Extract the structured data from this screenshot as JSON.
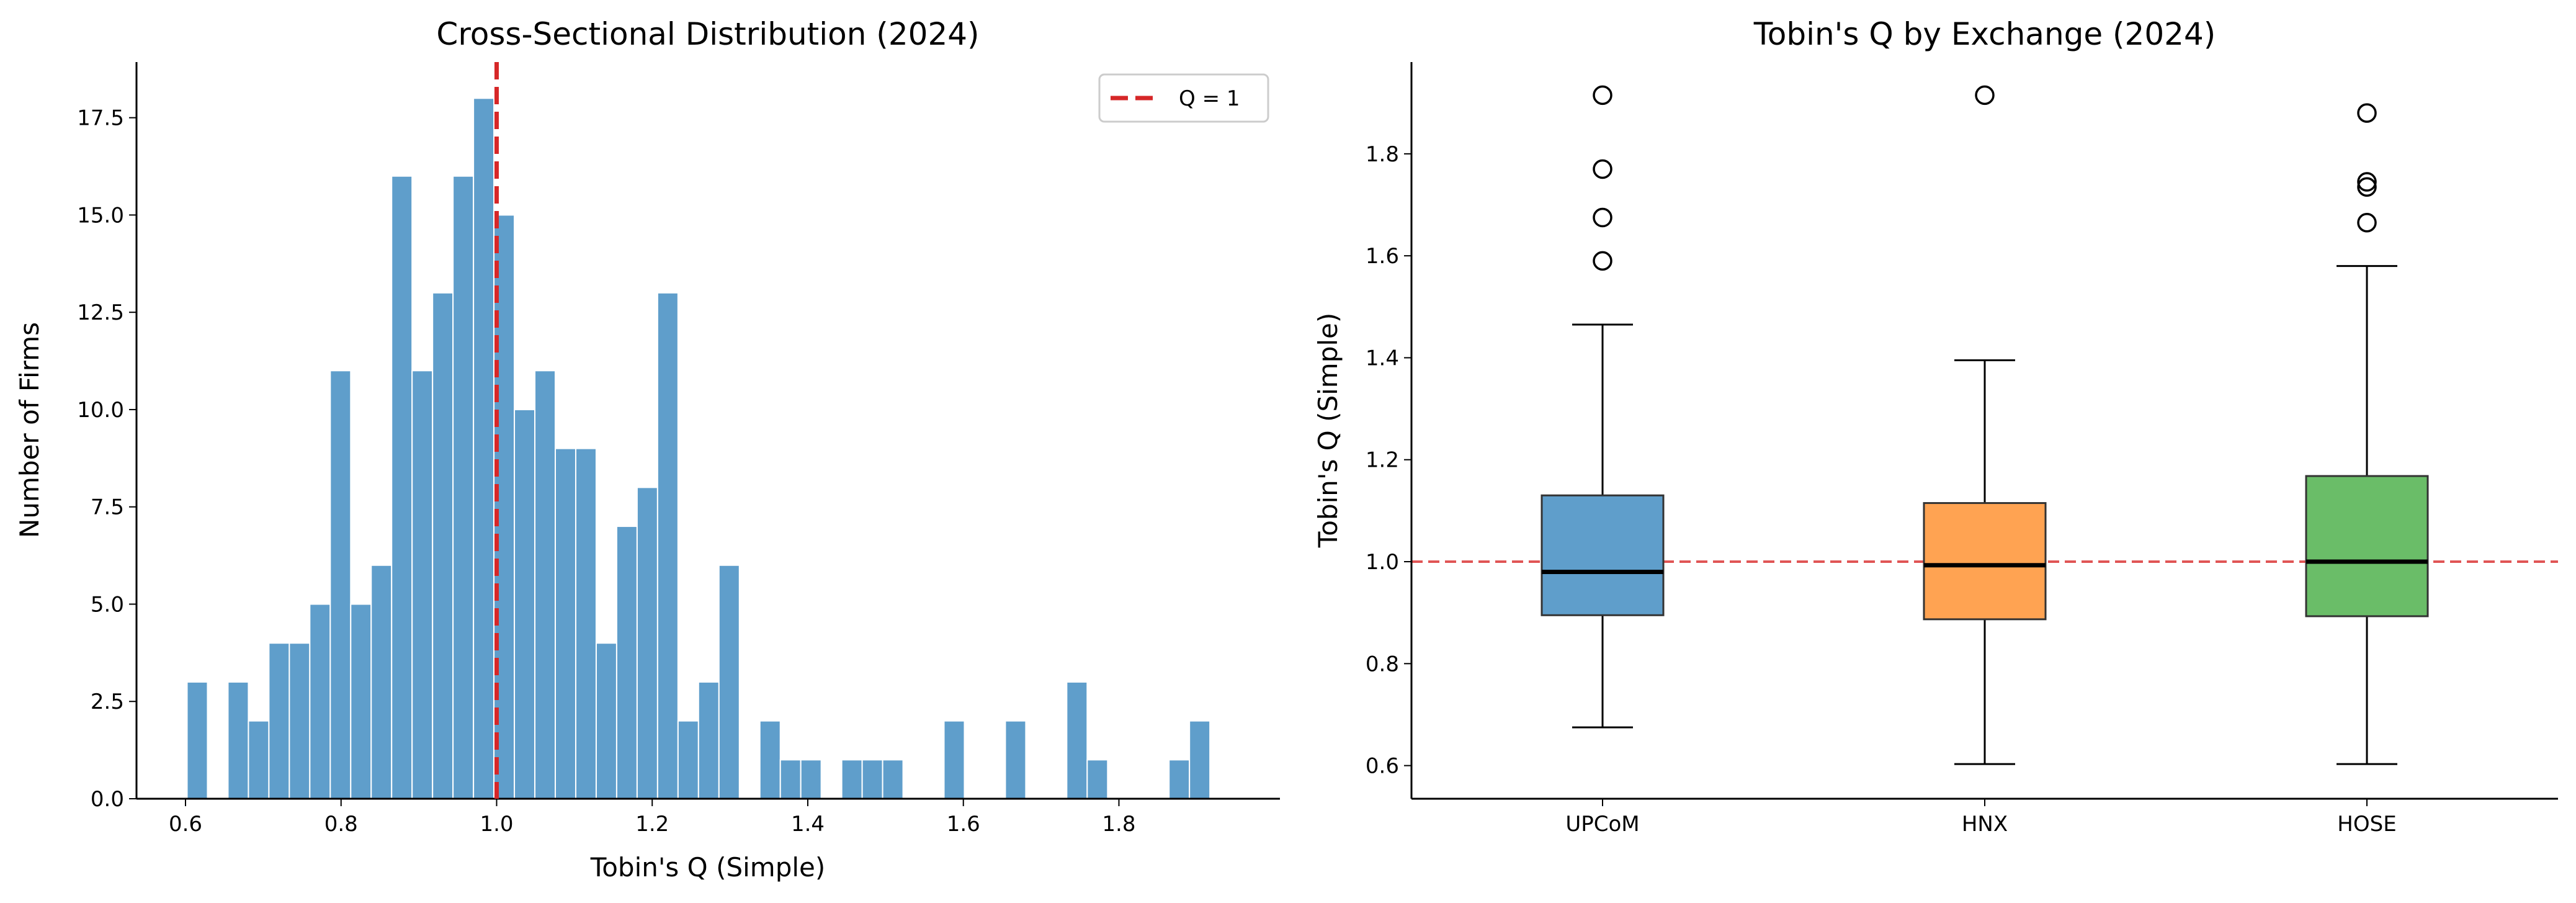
{
  "chart_data": [
    {
      "type": "bar",
      "subtype": "histogram",
      "title": "Cross-Sectional Distribution (2024)",
      "xlabel": "Tobin's Q (Simple)",
      "ylabel": "Number of Firms",
      "bin_start": 0.602,
      "bin_width": 0.0263,
      "counts": [
        3,
        0,
        3,
        2,
        4,
        4,
        5,
        11,
        5,
        6,
        16,
        11,
        13,
        16,
        18,
        15,
        10,
        11,
        9,
        9,
        4,
        7,
        8,
        13,
        2,
        3,
        6,
        0,
        2,
        1,
        1,
        0,
        1,
        1,
        1,
        0,
        0,
        2,
        0,
        0,
        2,
        0,
        0,
        3,
        1,
        0,
        0,
        0,
        1,
        2
      ],
      "xlim": [
        0.537,
        2.007
      ],
      "ylim": [
        0,
        18.93
      ],
      "xticks": [
        "0.6",
        "0.8",
        "1.0",
        "1.2",
        "1.4",
        "1.6",
        "1.8"
      ],
      "yticks": [
        "0.0",
        "2.5",
        "5.0",
        "7.5",
        "10.0",
        "12.5",
        "15.0",
        "17.5"
      ],
      "bar_color": "#5f9ecb",
      "reference_line": {
        "x": 1.0,
        "label": "Q = 1",
        "color": "#d62728"
      },
      "legend": {
        "position": "top-right",
        "entries": [
          "Q = 1"
        ]
      }
    },
    {
      "type": "box",
      "title": "Tobin's Q by Exchange (2024)",
      "xlabel": "",
      "ylabel": "Tobin's Q (Simple)",
      "ylim": [
        0.535,
        1.98
      ],
      "yticks": [
        "0.6",
        "0.8",
        "1.0",
        "1.2",
        "1.4",
        "1.6",
        "1.8"
      ],
      "categories": [
        "UPCoM",
        "HNX",
        "HOSE"
      ],
      "boxes": [
        {
          "name": "UPCoM",
          "whisker_low": 0.675,
          "q1": 0.895,
          "median": 0.98,
          "q3": 1.13,
          "whisker_high": 1.465,
          "outliers": [
            1.59,
            1.675,
            1.77,
            1.915
          ],
          "color": "#5f9ecb"
        },
        {
          "name": "HNX",
          "whisker_low": 0.603,
          "q1": 0.887,
          "median": 0.993,
          "q3": 1.115,
          "whisker_high": 1.395,
          "outliers": [
            1.915
          ],
          "color": "#ffa352"
        },
        {
          "name": "HOSE",
          "whisker_low": 0.603,
          "q1": 0.893,
          "median": 1.0,
          "q3": 1.168,
          "whisker_high": 1.58,
          "outliers": [
            1.665,
            1.735,
            1.745,
            1.88
          ],
          "color": "#6abd68"
        }
      ],
      "reference_line": {
        "y": 1.0,
        "color": "#e05555"
      }
    }
  ]
}
